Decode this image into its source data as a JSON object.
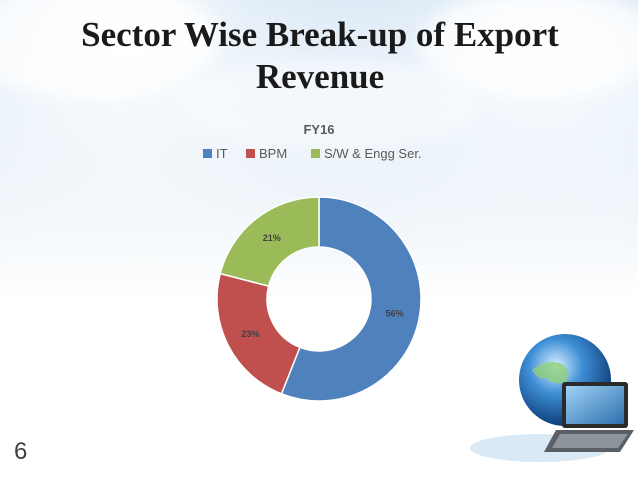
{
  "slide": {
    "title": "Sector Wise Break-up of Export Revenue",
    "number": "6"
  },
  "chart_data": {
    "type": "pie",
    "title": "FY16",
    "categories": [
      "IT",
      "BPM",
      "S/W & Engg Ser."
    ],
    "values": [
      56,
      23,
      21
    ],
    "data_labels": [
      "56%",
      "23%",
      "21%"
    ],
    "colors": [
      "#4F81BD",
      "#C0504D",
      "#9BBB59"
    ],
    "legend_position": "top",
    "donut": true
  },
  "decoration": {
    "icon": "globe-laptop-illustration-icon"
  }
}
